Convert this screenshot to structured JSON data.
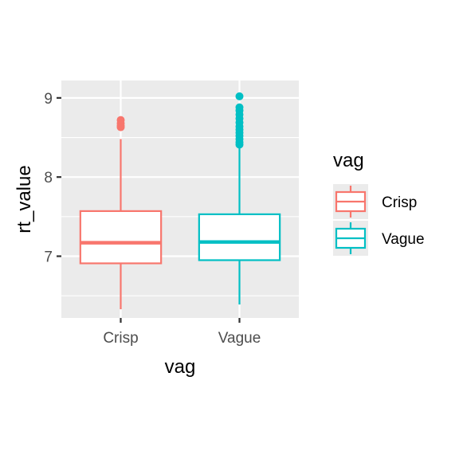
{
  "chart_data": {
    "type": "boxplot",
    "title": "",
    "xlabel": "vag",
    "ylabel": "rt_value",
    "categories": [
      "Crisp",
      "Vague"
    ],
    "ylim": [
      6.22,
      9.22
    ],
    "yticks": [
      7,
      8,
      9
    ],
    "y_tick_labels": [
      "7",
      "8",
      "9"
    ],
    "grid": true,
    "legend": {
      "title": "vag",
      "position": "right",
      "entries": [
        "Crisp",
        "Vague"
      ]
    },
    "series": [
      {
        "category": "Crisp",
        "color": "#F8766D",
        "whisker_low": 6.33,
        "q1": 6.91,
        "median": 7.17,
        "q3": 7.57,
        "whisker_high": 8.48,
        "outliers": [
          8.63,
          8.65,
          8.68,
          8.72
        ]
      },
      {
        "category": "Vague",
        "color": "#00BFC4",
        "whisker_low": 6.39,
        "q1": 6.95,
        "median": 7.18,
        "q3": 7.53,
        "whisker_high": 8.38,
        "outliers": [
          8.41,
          8.44,
          8.48,
          8.52,
          8.56,
          8.6,
          8.64,
          8.69,
          8.74,
          8.79,
          8.84,
          8.88,
          9.02
        ]
      }
    ]
  }
}
